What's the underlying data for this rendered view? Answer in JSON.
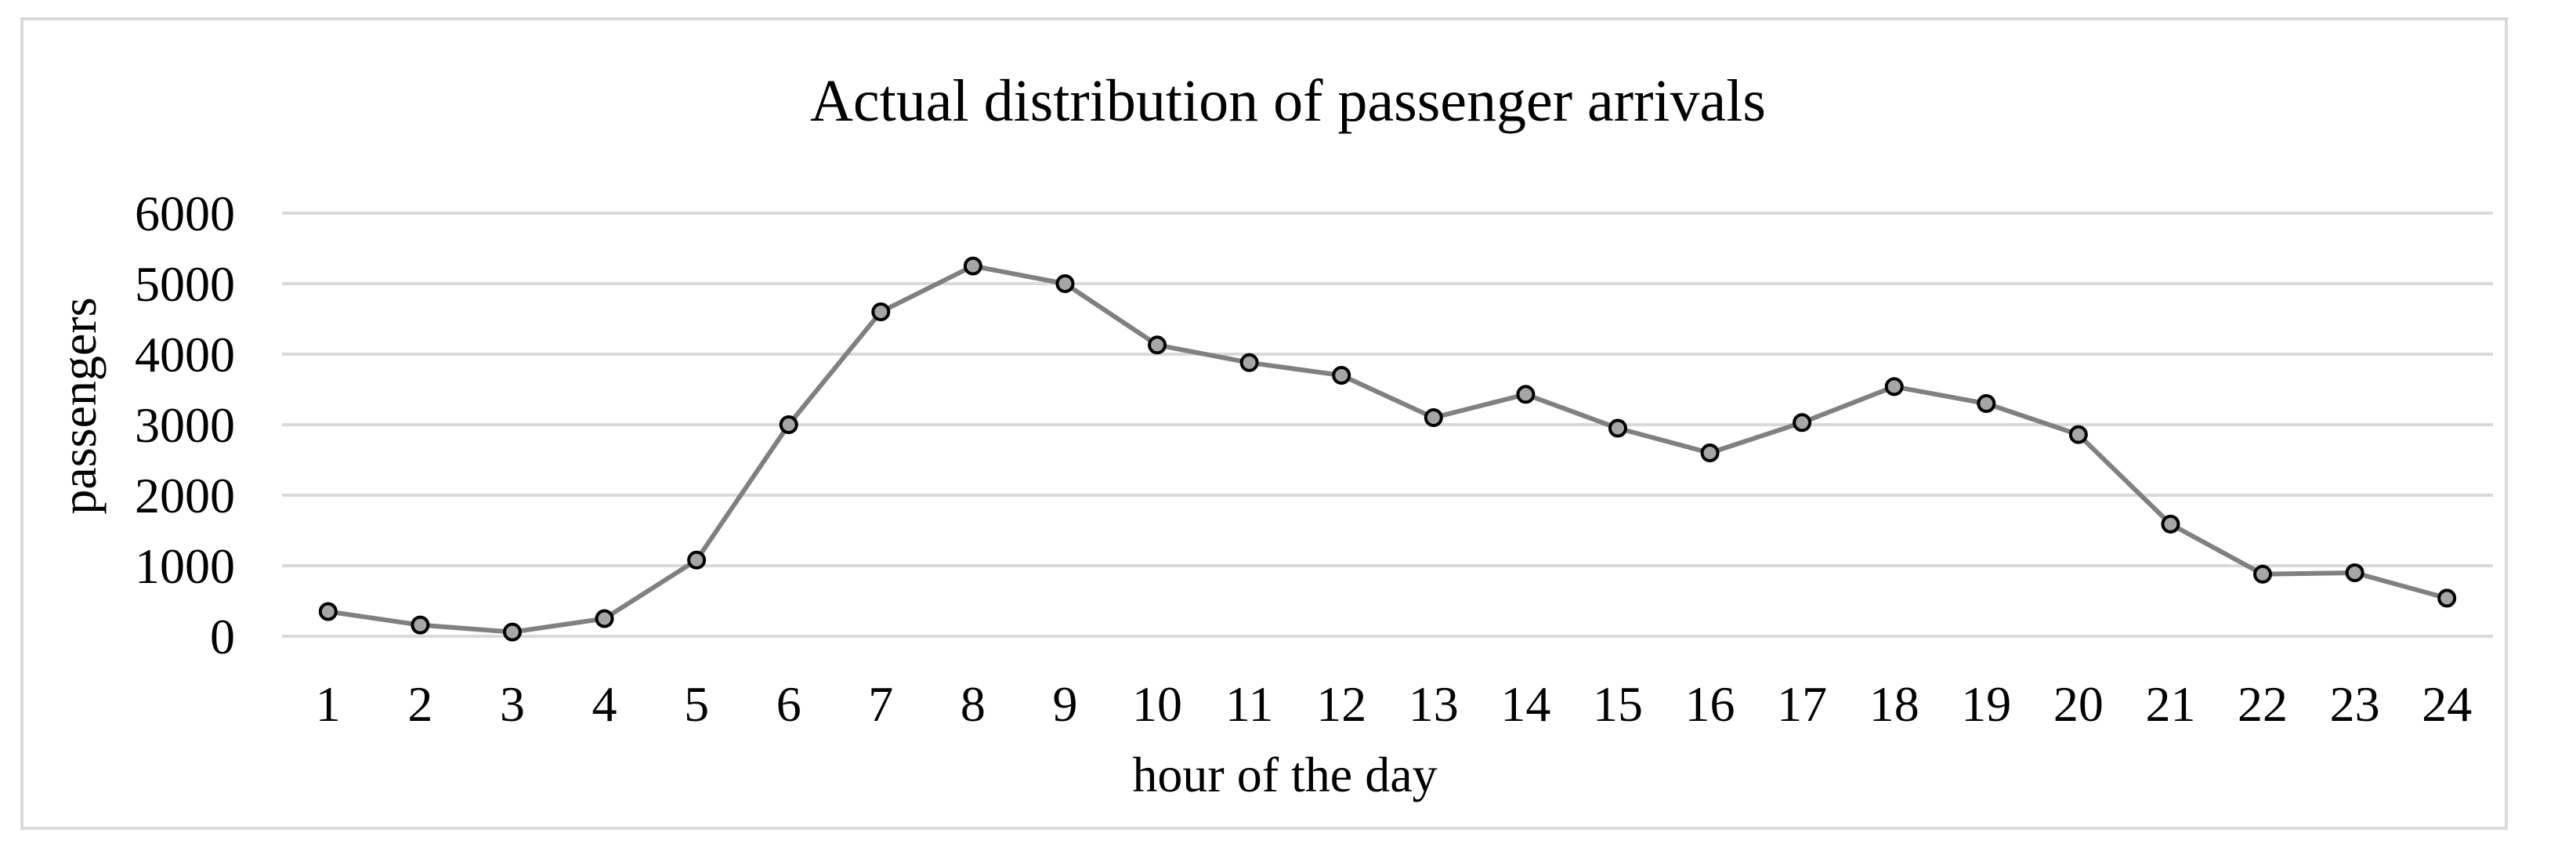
{
  "chart_data": {
    "type": "line",
    "title": "Actual distribution of passenger arrivals",
    "xlabel": "hour of the day",
    "ylabel": "passengers",
    "ylim": [
      0,
      6000
    ],
    "yticks": [
      "0",
      "1000",
      "2000",
      "3000",
      "4000",
      "5000",
      "6000"
    ],
    "grid": true,
    "legend": "none",
    "categories": [
      "1",
      "2",
      "3",
      "4",
      "5",
      "6",
      "7",
      "8",
      "9",
      "10",
      "11",
      "12",
      "13",
      "14",
      "15",
      "16",
      "17",
      "18",
      "19",
      "20",
      "21",
      "22",
      "23",
      "24"
    ],
    "series": [
      {
        "values": [
          350,
          160,
          60,
          250,
          1080,
          3000,
          4600,
          5250,
          5000,
          4130,
          3880,
          3700,
          3100,
          3430,
          2950,
          2600,
          3030,
          3540,
          3300,
          2860,
          1590,
          880,
          900,
          540
        ],
        "color": "#808080",
        "marker_fill": "#a6a6a6",
        "marker_stroke": "#000000"
      }
    ],
    "colors": {
      "gridline": "#d9d9d9",
      "border": "#d9d9d9"
    }
  }
}
